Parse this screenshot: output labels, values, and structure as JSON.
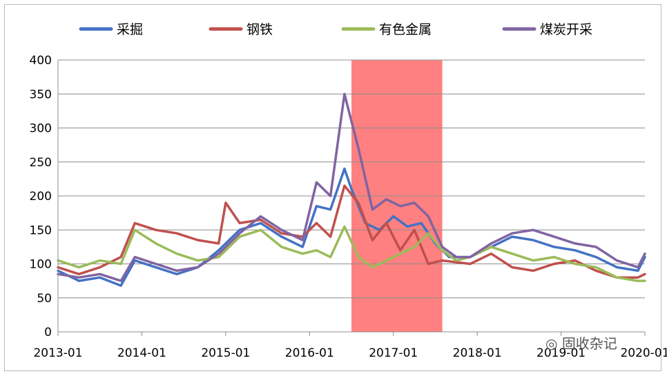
{
  "chart_data": {
    "type": "line",
    "title": "",
    "xlabel": "",
    "ylabel": "",
    "ylim": [
      0,
      400
    ],
    "yticks": [
      0,
      50,
      100,
      150,
      200,
      250,
      300,
      350,
      400
    ],
    "xlim": [
      "2013-01",
      "2020-01"
    ],
    "xtick_labels": [
      "2013-01",
      "2014-01",
      "2015-01",
      "2016-01",
      "2017-01",
      "2018-01",
      "2019-01",
      "2020-01"
    ],
    "grid": "horizontal",
    "legend_position": "top",
    "highlight_band": {
      "from": "2016-07",
      "to": "2017-08",
      "color": "#ff8080"
    },
    "series": [
      {
        "name": "采掘",
        "color": "#4472c4",
        "points": [
          [
            "2013-01",
            90
          ],
          [
            "2013-04",
            75
          ],
          [
            "2013-07",
            80
          ],
          [
            "2013-10",
            68
          ],
          [
            "2013-12",
            105
          ],
          [
            "2014-03",
            95
          ],
          [
            "2014-06",
            85
          ],
          [
            "2014-09",
            95
          ],
          [
            "2014-12",
            120
          ],
          [
            "2015-03",
            150
          ],
          [
            "2015-06",
            160
          ],
          [
            "2015-09",
            140
          ],
          [
            "2015-12",
            125
          ],
          [
            "2016-02",
            185
          ],
          [
            "2016-04",
            180
          ],
          [
            "2016-06",
            240
          ],
          [
            "2016-07",
            210
          ],
          [
            "2016-09",
            160
          ],
          [
            "2016-11",
            150
          ],
          [
            "2017-01",
            170
          ],
          [
            "2017-03",
            155
          ],
          [
            "2017-05",
            160
          ],
          [
            "2017-07",
            130
          ],
          [
            "2017-09",
            110
          ],
          [
            "2017-12",
            110
          ],
          [
            "2018-03",
            125
          ],
          [
            "2018-06",
            140
          ],
          [
            "2018-09",
            135
          ],
          [
            "2018-12",
            125
          ],
          [
            "2019-03",
            120
          ],
          [
            "2019-06",
            110
          ],
          [
            "2019-09",
            95
          ],
          [
            "2019-12",
            90
          ],
          [
            "2020-01",
            110
          ]
        ]
      },
      {
        "name": "钢铁",
        "color": "#c0504d",
        "points": [
          [
            "2013-01",
            95
          ],
          [
            "2013-04",
            85
          ],
          [
            "2013-07",
            95
          ],
          [
            "2013-10",
            110
          ],
          [
            "2013-12",
            160
          ],
          [
            "2014-03",
            150
          ],
          [
            "2014-06",
            145
          ],
          [
            "2014-09",
            135
          ],
          [
            "2014-12",
            130
          ],
          [
            "2015-01",
            190
          ],
          [
            "2015-03",
            160
          ],
          [
            "2015-06",
            165
          ],
          [
            "2015-09",
            145
          ],
          [
            "2015-12",
            140
          ],
          [
            "2016-02",
            160
          ],
          [
            "2016-04",
            140
          ],
          [
            "2016-06",
            215
          ],
          [
            "2016-08",
            190
          ],
          [
            "2016-10",
            135
          ],
          [
            "2016-12",
            160
          ],
          [
            "2017-02",
            120
          ],
          [
            "2017-04",
            150
          ],
          [
            "2017-06",
            100
          ],
          [
            "2017-08",
            105
          ],
          [
            "2017-12",
            100
          ],
          [
            "2018-03",
            115
          ],
          [
            "2018-06",
            95
          ],
          [
            "2018-09",
            90
          ],
          [
            "2018-12",
            100
          ],
          [
            "2019-03",
            105
          ],
          [
            "2019-06",
            90
          ],
          [
            "2019-09",
            80
          ],
          [
            "2019-12",
            80
          ],
          [
            "2020-01",
            85
          ]
        ]
      },
      {
        "name": "有色金属",
        "color": "#9bbb59",
        "points": [
          [
            "2013-01",
            105
          ],
          [
            "2013-04",
            95
          ],
          [
            "2013-07",
            105
          ],
          [
            "2013-10",
            100
          ],
          [
            "2013-12",
            150
          ],
          [
            "2014-03",
            130
          ],
          [
            "2014-06",
            115
          ],
          [
            "2014-09",
            105
          ],
          [
            "2014-12",
            110
          ],
          [
            "2015-03",
            140
          ],
          [
            "2015-06",
            150
          ],
          [
            "2015-09",
            125
          ],
          [
            "2015-12",
            115
          ],
          [
            "2016-02",
            120
          ],
          [
            "2016-04",
            110
          ],
          [
            "2016-06",
            155
          ],
          [
            "2016-08",
            110
          ],
          [
            "2016-10",
            95
          ],
          [
            "2016-12",
            105
          ],
          [
            "2017-02",
            115
          ],
          [
            "2017-04",
            125
          ],
          [
            "2017-06",
            145
          ],
          [
            "2017-08",
            120
          ],
          [
            "2017-10",
            105
          ],
          [
            "2017-12",
            110
          ],
          [
            "2018-03",
            125
          ],
          [
            "2018-06",
            115
          ],
          [
            "2018-09",
            105
          ],
          [
            "2018-12",
            110
          ],
          [
            "2019-03",
            100
          ],
          [
            "2019-06",
            95
          ],
          [
            "2019-09",
            80
          ],
          [
            "2019-12",
            75
          ],
          [
            "2020-01",
            75
          ]
        ]
      },
      {
        "name": "煤炭开采",
        "color": "#8064a2",
        "points": [
          [
            "2013-01",
            85
          ],
          [
            "2013-04",
            80
          ],
          [
            "2013-07",
            85
          ],
          [
            "2013-10",
            75
          ],
          [
            "2013-12",
            110
          ],
          [
            "2014-03",
            100
          ],
          [
            "2014-06",
            90
          ],
          [
            "2014-09",
            95
          ],
          [
            "2014-12",
            115
          ],
          [
            "2015-03",
            145
          ],
          [
            "2015-06",
            170
          ],
          [
            "2015-09",
            150
          ],
          [
            "2015-12",
            135
          ],
          [
            "2016-02",
            220
          ],
          [
            "2016-04",
            200
          ],
          [
            "2016-06",
            350
          ],
          [
            "2016-08",
            270
          ],
          [
            "2016-10",
            180
          ],
          [
            "2016-12",
            195
          ],
          [
            "2017-02",
            185
          ],
          [
            "2017-04",
            190
          ],
          [
            "2017-06",
            170
          ],
          [
            "2017-08",
            125
          ],
          [
            "2017-10",
            110
          ],
          [
            "2017-12",
            110
          ],
          [
            "2018-03",
            130
          ],
          [
            "2018-06",
            145
          ],
          [
            "2018-09",
            150
          ],
          [
            "2018-12",
            140
          ],
          [
            "2019-03",
            130
          ],
          [
            "2019-06",
            125
          ],
          [
            "2019-09",
            105
          ],
          [
            "2019-12",
            95
          ],
          [
            "2020-01",
            115
          ]
        ]
      }
    ]
  },
  "watermark": "固收杂记"
}
